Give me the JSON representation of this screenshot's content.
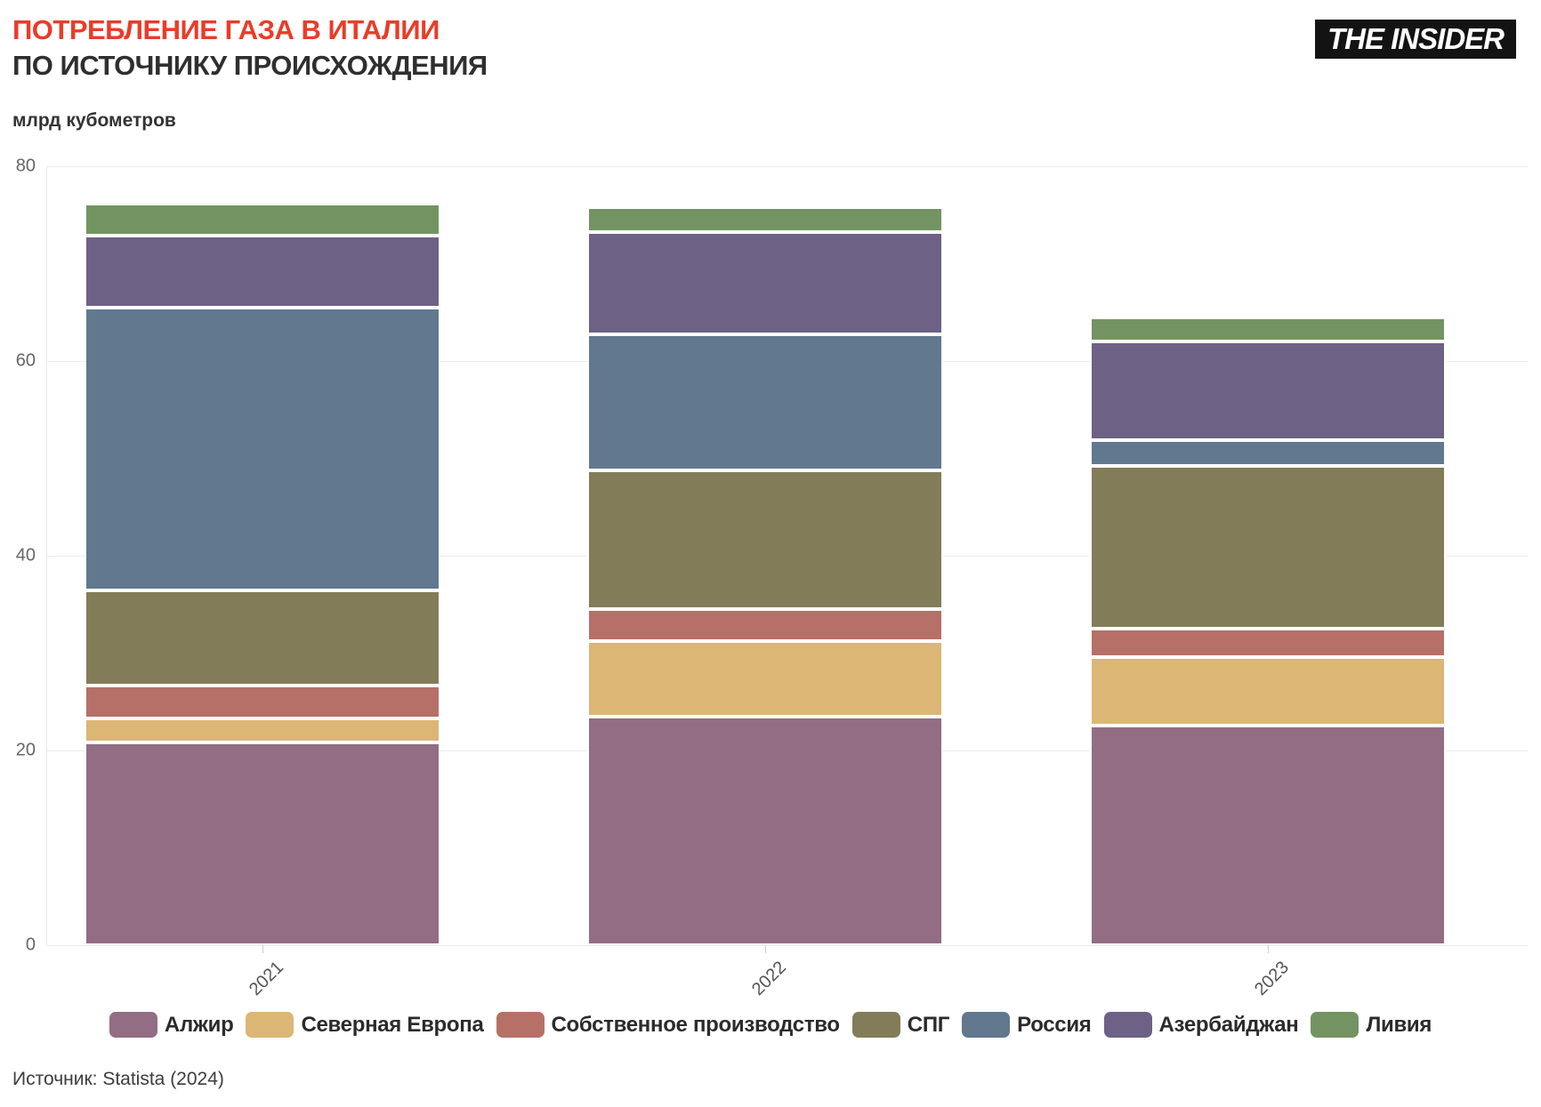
{
  "header": {
    "title": "ПОТРЕБЛЕНИЕ ГАЗА В ИТАЛИИ",
    "subtitle": "ПО ИСТОЧНИКУ ПРОИСХОЖДЕНИЯ",
    "logo": "THE INSIDER",
    "title_color": "#EA3C28"
  },
  "chart_data": {
    "type": "bar",
    "stacked": true,
    "title": "ПОТРЕБЛЕНИЕ ГАЗА В ИТАЛИИ ПО ИСТОЧНИКУ ПРОИСХОЖДЕНИЯ",
    "ylabel": "млрд кубометров",
    "categories": [
      "2021",
      "2022",
      "2023"
    ],
    "series": [
      {
        "name": "Алжир",
        "color": "#926D84",
        "values": [
          20.8,
          23.5,
          22.6
        ]
      },
      {
        "name": "Северная Европа",
        "color": "#DCB674",
        "values": [
          2.5,
          7.7,
          7.0
        ]
      },
      {
        "name": "Собственное производство",
        "color": "#B67067",
        "values": [
          3.4,
          3.3,
          2.9
        ]
      },
      {
        "name": "СПГ",
        "color": "#827C59",
        "values": [
          9.7,
          14.3,
          16.7
        ]
      },
      {
        "name": "Россия",
        "color": "#61788F",
        "values": [
          29.1,
          13.9,
          2.7
        ]
      },
      {
        "name": "Азербайджан",
        "color": "#6D6185",
        "values": [
          7.4,
          10.5,
          10.1
        ]
      },
      {
        "name": "Ливия",
        "color": "#739462",
        "values": [
          3.3,
          2.6,
          2.5
        ]
      }
    ],
    "totals": [
      76.2,
      75.8,
      64.5
    ],
    "ylim": [
      0,
      80
    ],
    "yticks": [
      0,
      20,
      40,
      60,
      80
    ],
    "grid": true,
    "legend_position": "bottom"
  },
  "footer": {
    "source": "Источник: Statista (2024)"
  }
}
